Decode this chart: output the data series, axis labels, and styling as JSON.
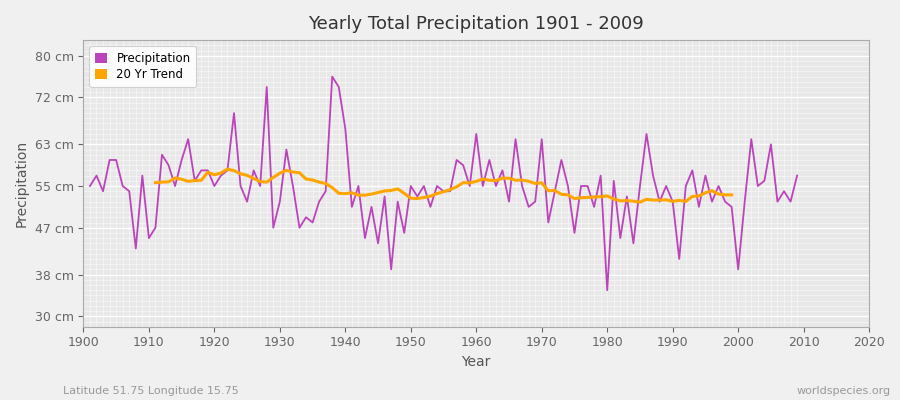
{
  "title": "Yearly Total Precipitation 1901 - 2009",
  "ylabel": "Precipitation",
  "xlabel": "Year",
  "subtitle": "Latitude 51.75 Longitude 15.75",
  "watermark": "worldspecies.org",
  "precip_color": "#BB44BB",
  "trend_color": "#FFA500",
  "bg_color": "#F0F0F0",
  "plot_bg_color": "#E8E8E8",
  "grid_color": "#FFFFFF",
  "yticks": [
    30,
    38,
    47,
    55,
    63,
    72,
    80
  ],
  "ylabels": [
    "30 cm",
    "38 cm",
    "47 cm",
    "55 cm",
    "63 cm",
    "72 cm",
    "80 cm"
  ],
  "ylim": [
    28,
    83
  ],
  "xlim": [
    1901,
    2010
  ],
  "years": [
    1901,
    1902,
    1903,
    1904,
    1905,
    1906,
    1907,
    1908,
    1909,
    1910,
    1911,
    1912,
    1913,
    1914,
    1915,
    1916,
    1917,
    1918,
    1919,
    1920,
    1921,
    1922,
    1923,
    1924,
    1925,
    1926,
    1927,
    1928,
    1929,
    1930,
    1931,
    1932,
    1933,
    1934,
    1935,
    1936,
    1937,
    1938,
    1939,
    1940,
    1941,
    1942,
    1943,
    1944,
    1945,
    1946,
    1947,
    1948,
    1949,
    1950,
    1951,
    1952,
    1953,
    1954,
    1955,
    1956,
    1957,
    1958,
    1959,
    1960,
    1961,
    1962,
    1963,
    1964,
    1965,
    1966,
    1967,
    1968,
    1969,
    1970,
    1971,
    1972,
    1973,
    1974,
    1975,
    1976,
    1977,
    1978,
    1979,
    1980,
    1981,
    1982,
    1983,
    1984,
    1985,
    1986,
    1987,
    1988,
    1989,
    1990,
    1991,
    1992,
    1993,
    1994,
    1995,
    1996,
    1997,
    1998,
    1999,
    2000,
    2001,
    2002,
    2003,
    2004,
    2005,
    2006,
    2007,
    2008,
    2009
  ],
  "precip": [
    55,
    57,
    54,
    60,
    60,
    55,
    54,
    43,
    57,
    45,
    47,
    61,
    59,
    55,
    60,
    64,
    56,
    58,
    58,
    55,
    57,
    58,
    69,
    55,
    52,
    58,
    55,
    74,
    47,
    52,
    62,
    55,
    47,
    49,
    48,
    52,
    54,
    76,
    74,
    66,
    51,
    55,
    45,
    51,
    44,
    53,
    39,
    52,
    46,
    55,
    53,
    55,
    51,
    55,
    54,
    54,
    60,
    59,
    55,
    65,
    55,
    60,
    55,
    58,
    52,
    64,
    55,
    51,
    52,
    64,
    48,
    54,
    60,
    55,
    46,
    55,
    55,
    51,
    57,
    35,
    56,
    45,
    53,
    44,
    55,
    65,
    57,
    52,
    55,
    52,
    41,
    55,
    58,
    51,
    57,
    52,
    55,
    52,
    51,
    39,
    52,
    64,
    55,
    56,
    63,
    52,
    54,
    52,
    57
  ]
}
